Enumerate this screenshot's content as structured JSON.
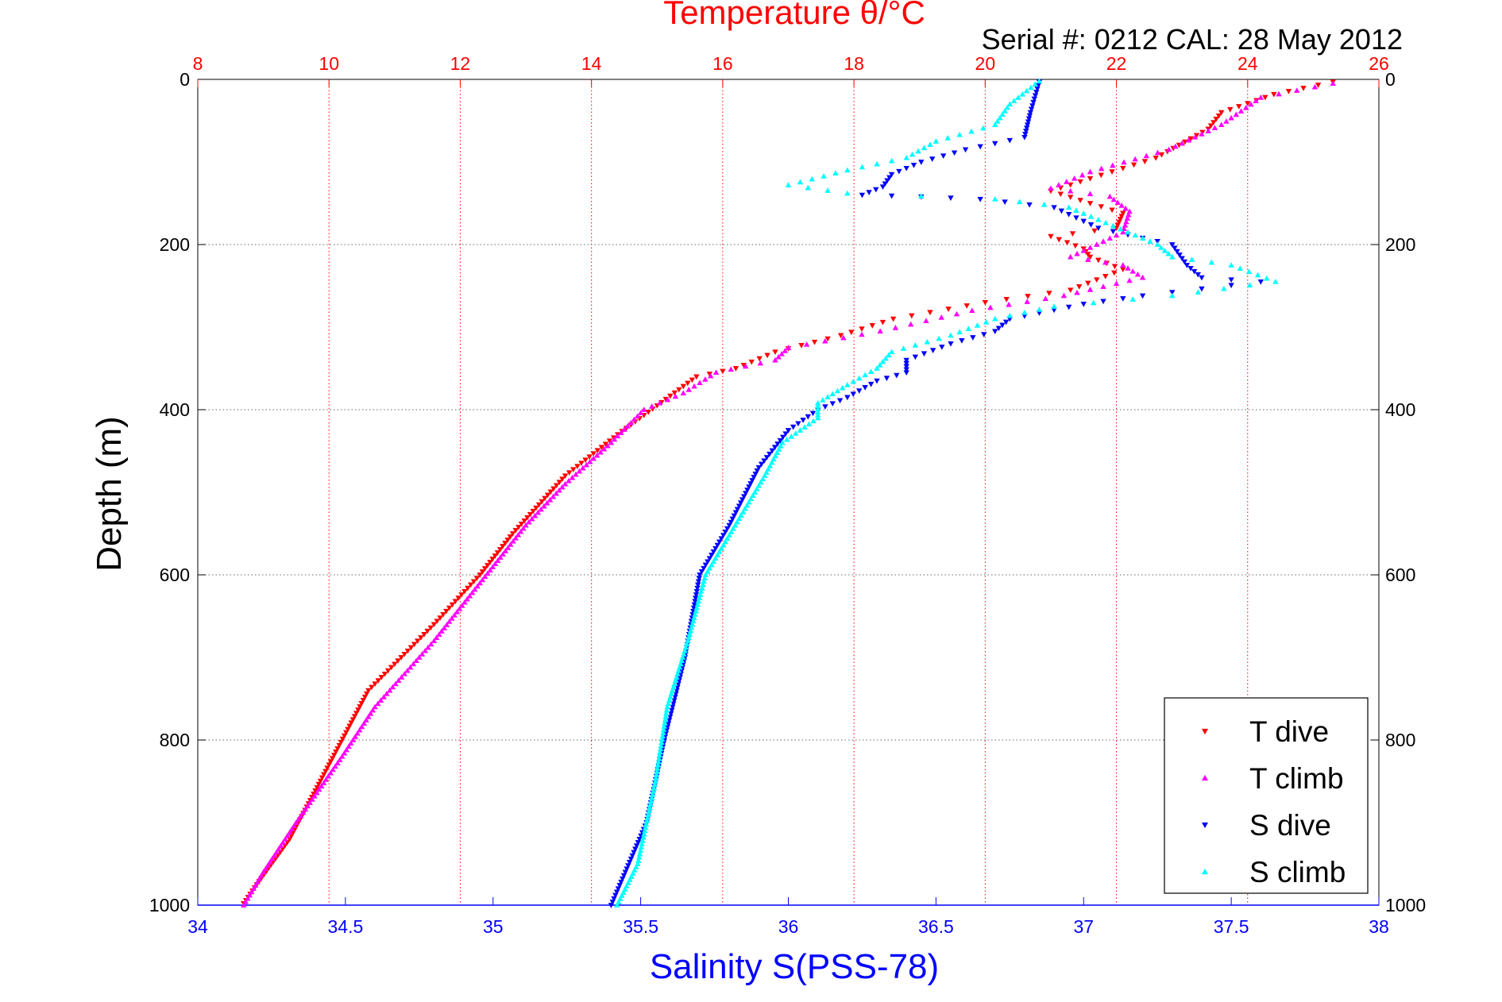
{
  "chart_data": {
    "type": "scatter",
    "title": "Temperature θ/°C",
    "subtitle": "Serial #: 0212  CAL: 28 May 2012",
    "xlabel_bottom": "Salinity S(PSS-78)",
    "xlabel_top": "Temperature θ/°C",
    "ylabel": "Depth (m)",
    "x_bottom_lim": [
      34,
      38
    ],
    "x_top_lim": [
      8,
      26
    ],
    "ylim": [
      0,
      1000
    ],
    "y_reversed": true,
    "x_bottom_ticks": [
      "34",
      "34.5",
      "35",
      "35.5",
      "36",
      "36.5",
      "37",
      "37.5",
      "38"
    ],
    "x_top_ticks": [
      "8",
      "10",
      "12",
      "14",
      "16",
      "18",
      "20",
      "22",
      "24",
      "26"
    ],
    "y_ticks": [
      "0",
      "200",
      "400",
      "600",
      "800",
      "1000"
    ],
    "grid": true,
    "legend_position": "bottom-right",
    "series": [
      {
        "name": "T dive",
        "color": "#ff0000",
        "marker": "triangle-down",
        "axis": "top",
        "points": [
          [
            25.3,
            3
          ],
          [
            24.4,
            18
          ],
          [
            23.6,
            40
          ],
          [
            23.4,
            60
          ],
          [
            22.6,
            95
          ],
          [
            21.6,
            120
          ],
          [
            21.0,
            135
          ],
          [
            21.6,
            150
          ],
          [
            22.1,
            162
          ],
          [
            22.0,
            180
          ],
          [
            21.0,
            190
          ],
          [
            21.5,
            205
          ],
          [
            21.6,
            215
          ],
          [
            22.1,
            230
          ],
          [
            21.3,
            255
          ],
          [
            20.0,
            270
          ],
          [
            18.6,
            290
          ],
          [
            17.8,
            310
          ],
          [
            16.8,
            330
          ],
          [
            16.2,
            350
          ],
          [
            15.6,
            360
          ],
          [
            15.0,
            395
          ],
          [
            14.4,
            430
          ],
          [
            13.6,
            480
          ],
          [
            12.8,
            550
          ],
          [
            12.3,
            600
          ],
          [
            11.6,
            660
          ],
          [
            10.6,
            740
          ],
          [
            10.0,
            830
          ],
          [
            9.4,
            920
          ],
          [
            8.9,
            975
          ],
          [
            8.7,
            998
          ]
        ]
      },
      {
        "name": "T climb",
        "color": "#ff00ff",
        "marker": "triangle-up",
        "axis": "top",
        "points": [
          [
            25.3,
            5
          ],
          [
            24.2,
            22
          ],
          [
            23.6,
            55
          ],
          [
            22.8,
            85
          ],
          [
            21.6,
            112
          ],
          [
            21.0,
            132
          ],
          [
            21.9,
            142
          ],
          [
            22.2,
            160
          ],
          [
            22.1,
            185
          ],
          [
            21.3,
            215
          ],
          [
            22.1,
            225
          ],
          [
            22.4,
            240
          ],
          [
            21.2,
            262
          ],
          [
            19.8,
            280
          ],
          [
            18.4,
            305
          ],
          [
            17.0,
            325
          ],
          [
            16.8,
            340
          ],
          [
            15.9,
            355
          ],
          [
            15.4,
            380
          ],
          [
            14.8,
            400
          ],
          [
            14.3,
            440
          ],
          [
            13.6,
            490
          ],
          [
            13.0,
            540
          ],
          [
            12.3,
            610
          ],
          [
            11.6,
            680
          ],
          [
            10.7,
            760
          ],
          [
            10.2,
            820
          ],
          [
            9.5,
            900
          ],
          [
            9.0,
            960
          ],
          [
            8.7,
            1000
          ]
        ]
      },
      {
        "name": "S dive",
        "color": "#0000ff",
        "marker": "triangle-down",
        "axis": "bottom",
        "points": [
          [
            36.85,
            3
          ],
          [
            36.82,
            40
          ],
          [
            36.8,
            70
          ],
          [
            36.6,
            85
          ],
          [
            36.45,
            100
          ],
          [
            36.35,
            115
          ],
          [
            36.32,
            130
          ],
          [
            36.25,
            140
          ],
          [
            36.45,
            142
          ],
          [
            36.65,
            145
          ],
          [
            36.9,
            155
          ],
          [
            37.05,
            180
          ],
          [
            37.3,
            200
          ],
          [
            37.35,
            225
          ],
          [
            37.4,
            240
          ],
          [
            37.6,
            245
          ],
          [
            37.2,
            262
          ],
          [
            37.0,
            272
          ],
          [
            36.75,
            290
          ],
          [
            36.7,
            305
          ],
          [
            36.55,
            320
          ],
          [
            36.4,
            340
          ],
          [
            36.4,
            355
          ],
          [
            36.3,
            365
          ],
          [
            36.2,
            385
          ],
          [
            36.1,
            400
          ],
          [
            36.0,
            425
          ],
          [
            35.9,
            470
          ],
          [
            35.8,
            540
          ],
          [
            35.7,
            600
          ],
          [
            35.65,
            700
          ],
          [
            35.58,
            800
          ],
          [
            35.52,
            900
          ],
          [
            35.4,
            1000
          ]
        ]
      },
      {
        "name": "S climb",
        "color": "#00ffff",
        "marker": "triangle-up",
        "axis": "bottom",
        "points": [
          [
            36.85,
            2
          ],
          [
            36.75,
            30
          ],
          [
            36.7,
            55
          ],
          [
            36.5,
            75
          ],
          [
            36.4,
            95
          ],
          [
            36.2,
            110
          ],
          [
            36.0,
            128
          ],
          [
            36.2,
            138
          ],
          [
            36.7,
            145
          ],
          [
            36.95,
            155
          ],
          [
            37.15,
            185
          ],
          [
            37.25,
            200
          ],
          [
            37.3,
            215
          ],
          [
            37.5,
            225
          ],
          [
            37.65,
            245
          ],
          [
            37.3,
            262
          ],
          [
            36.9,
            275
          ],
          [
            36.7,
            290
          ],
          [
            36.55,
            310
          ],
          [
            36.35,
            330
          ],
          [
            36.3,
            350
          ],
          [
            36.2,
            370
          ],
          [
            36.1,
            392
          ],
          [
            36.1,
            410
          ],
          [
            35.98,
            440
          ],
          [
            35.92,
            480
          ],
          [
            35.82,
            540
          ],
          [
            35.72,
            600
          ],
          [
            35.66,
            680
          ],
          [
            35.59,
            760
          ],
          [
            35.55,
            850
          ],
          [
            35.49,
            950
          ],
          [
            35.42,
            1000
          ]
        ]
      }
    ]
  }
}
